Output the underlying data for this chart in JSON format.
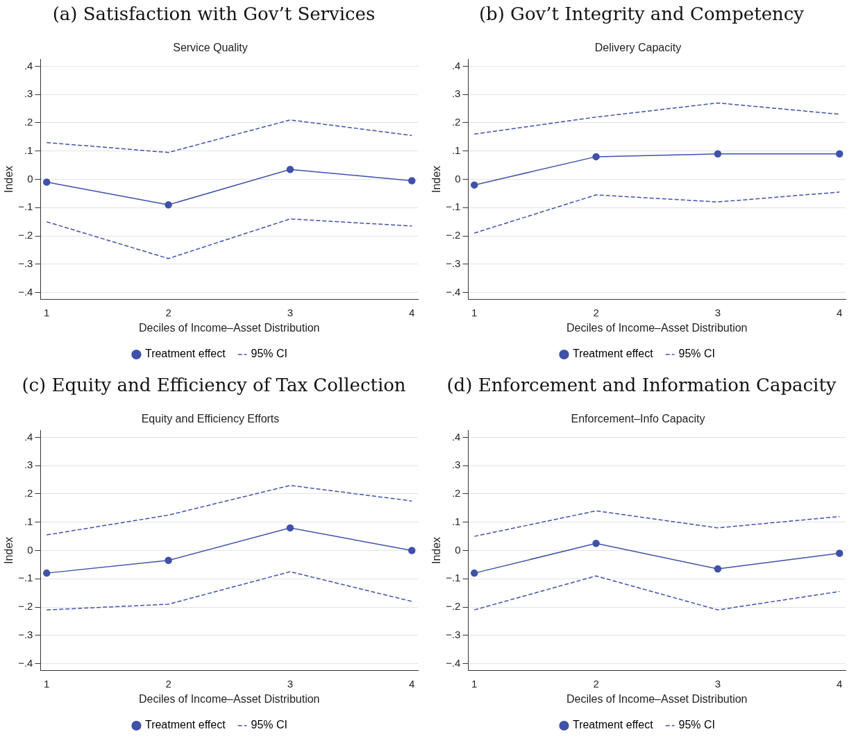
{
  "chart_data": [
    {
      "type": "line",
      "title": "(a) Satisfaction with Gov’t Services",
      "subtitle": "Service Quality",
      "xlabel": "Deciles of Income–Asset Distribution",
      "ylabel": "Index",
      "x": [
        1,
        2,
        3,
        4
      ],
      "xlim": [
        0.95,
        4.05
      ],
      "xticks": [
        1,
        2,
        3,
        4
      ],
      "ylim": [
        -0.425,
        0.425
      ],
      "yticks": [
        {
          "value": -0.4,
          "label": "−.4"
        },
        {
          "value": -0.3,
          "label": "−.3"
        },
        {
          "value": -0.2,
          "label": "−.2"
        },
        {
          "value": -0.1,
          "label": "−.1"
        },
        {
          "value": 0,
          "label": "0"
        },
        {
          "value": 0.1,
          "label": ".1"
        },
        {
          "value": 0.2,
          "label": ".2"
        },
        {
          "value": 0.3,
          "label": ".3"
        },
        {
          "value": 0.4,
          "label": ".4"
        }
      ],
      "grid": "y",
      "legend": "bottom",
      "series": [
        {
          "name": "Treatment effect",
          "color": "#3f51a8",
          "marker": "circle",
          "line_style": "solid",
          "values": [
            -0.01,
            -0.09,
            0.035,
            -0.005
          ]
        },
        {
          "name": "95% CI",
          "color": "#3f51a8",
          "marker": "none",
          "line_style": "dashed",
          "values": [
            0.13,
            0.095,
            0.21,
            0.155
          ]
        },
        {
          "color": "#3f51a8",
          "marker": "none",
          "line_style": "dashed",
          "values": [
            -0.15,
            -0.28,
            -0.14,
            -0.165
          ]
        }
      ]
    },
    {
      "type": "line",
      "title": "(b) Gov’t Integrity and Competency",
      "subtitle": "Delivery Capacity",
      "xlabel": "Deciles of Income–Asset Distribution",
      "ylabel": "Index",
      "x": [
        1,
        2,
        3,
        4
      ],
      "xlim": [
        0.95,
        4.05
      ],
      "xticks": [
        1,
        2,
        3,
        4
      ],
      "ylim": [
        -0.425,
        0.425
      ],
      "yticks": [
        {
          "value": -0.4,
          "label": "−.4"
        },
        {
          "value": -0.3,
          "label": "−.3"
        },
        {
          "value": -0.2,
          "label": "−.2"
        },
        {
          "value": -0.1,
          "label": "−.1"
        },
        {
          "value": 0,
          "label": "0"
        },
        {
          "value": 0.1,
          "label": ".1"
        },
        {
          "value": 0.2,
          "label": ".2"
        },
        {
          "value": 0.3,
          "label": ".3"
        },
        {
          "value": 0.4,
          "label": ".4"
        }
      ],
      "grid": "y",
      "legend": "bottom",
      "series": [
        {
          "name": "Treatment effect",
          "color": "#3f51a8",
          "marker": "circle",
          "line_style": "solid",
          "values": [
            -0.02,
            0.08,
            0.09,
            0.09
          ]
        },
        {
          "name": "95% CI",
          "color": "#3f51a8",
          "marker": "none",
          "line_style": "dashed",
          "values": [
            0.16,
            0.22,
            0.27,
            0.23
          ]
        },
        {
          "color": "#3f51a8",
          "marker": "none",
          "line_style": "dashed",
          "values": [
            -0.19,
            -0.055,
            -0.08,
            -0.045
          ]
        }
      ]
    },
    {
      "type": "line",
      "title": "(c) Equity and Efficiency of Tax Collection",
      "subtitle": "Equity and Efficiency Efforts",
      "xlabel": "Deciles of Income–Asset Distribution",
      "ylabel": "Index",
      "x": [
        1,
        2,
        3,
        4
      ],
      "xlim": [
        0.95,
        4.05
      ],
      "xticks": [
        1,
        2,
        3,
        4
      ],
      "ylim": [
        -0.425,
        0.425
      ],
      "yticks": [
        {
          "value": -0.4,
          "label": "−.4"
        },
        {
          "value": -0.3,
          "label": "−.3"
        },
        {
          "value": -0.2,
          "label": "−.2"
        },
        {
          "value": -0.1,
          "label": "−.1"
        },
        {
          "value": 0,
          "label": "0"
        },
        {
          "value": 0.1,
          "label": ".1"
        },
        {
          "value": 0.2,
          "label": ".2"
        },
        {
          "value": 0.3,
          "label": ".3"
        },
        {
          "value": 0.4,
          "label": ".4"
        }
      ],
      "grid": "y",
      "legend": "bottom",
      "series": [
        {
          "name": "Treatment effect",
          "color": "#3f51a8",
          "marker": "circle",
          "line_style": "solid",
          "values": [
            -0.08,
            -0.035,
            0.08,
            0
          ]
        },
        {
          "name": "95% CI",
          "color": "#3f51a8",
          "marker": "none",
          "line_style": "dashed",
          "values": [
            0.055,
            0.125,
            0.23,
            0.175
          ]
        },
        {
          "color": "#3f51a8",
          "marker": "none",
          "line_style": "dashed",
          "values": [
            -0.21,
            -0.19,
            -0.075,
            -0.18
          ]
        }
      ]
    },
    {
      "type": "line",
      "title": "(d) Enforcement and Information Capacity",
      "subtitle": "Enforcement–Info Capacity",
      "xlabel": "Deciles of Income–Asset Distribution",
      "ylabel": "Index",
      "x": [
        1,
        2,
        3,
        4
      ],
      "xlim": [
        0.95,
        4.05
      ],
      "xticks": [
        1,
        2,
        3,
        4
      ],
      "ylim": [
        -0.425,
        0.425
      ],
      "yticks": [
        {
          "value": -0.4,
          "label": "−.4"
        },
        {
          "value": -0.3,
          "label": "−.3"
        },
        {
          "value": -0.2,
          "label": "−.2"
        },
        {
          "value": -0.1,
          "label": "−.1"
        },
        {
          "value": 0,
          "label": "0"
        },
        {
          "value": 0.1,
          "label": ".1"
        },
        {
          "value": 0.2,
          "label": ".2"
        },
        {
          "value": 0.3,
          "label": ".3"
        },
        {
          "value": 0.4,
          "label": ".4"
        }
      ],
      "grid": "y",
      "legend": "bottom",
      "series": [
        {
          "name": "Treatment effect",
          "color": "#3f51a8",
          "marker": "circle",
          "line_style": "solid",
          "values": [
            -0.08,
            0.025,
            -0.065,
            -0.01
          ]
        },
        {
          "name": "95% CI",
          "color": "#3f51a8",
          "marker": "none",
          "line_style": "dashed",
          "values": [
            0.05,
            0.14,
            0.08,
            0.12
          ]
        },
        {
          "color": "#3f51a8",
          "marker": "none",
          "line_style": "dashed",
          "values": [
            -0.21,
            -0.09,
            -0.21,
            -0.145
          ]
        }
      ]
    }
  ]
}
